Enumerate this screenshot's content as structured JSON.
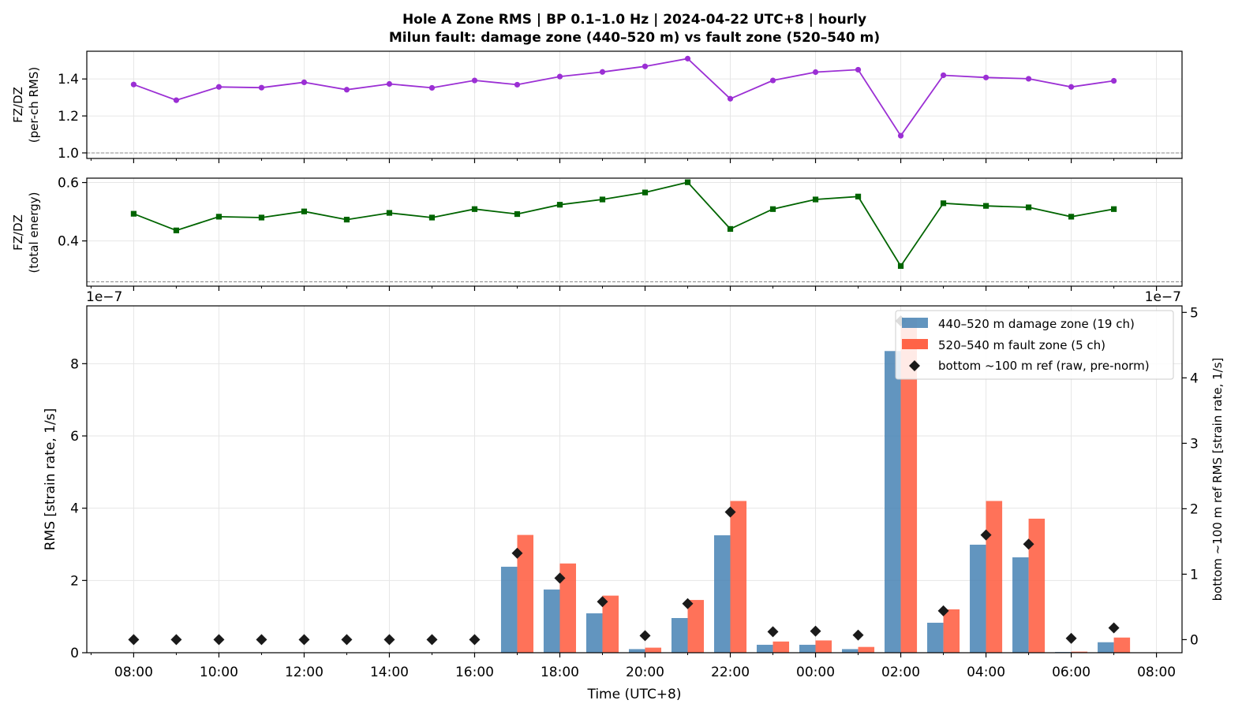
{
  "title": "Hole A Zone RMS  |  BP 0.1–1.0 Hz  |  2024-04-22 UTC+8  |  hourly",
  "subtitle": "Milun fault: damage zone (440–520 m) vs fault zone (520–540 m)",
  "colors": {
    "ratio_rms": "#9b2fd4",
    "ratio_energy": "#006400",
    "damage_zone": "#4682b4",
    "fault_zone": "#ff6347",
    "reference": "#1a1a1a",
    "grid": "#e6e6e6"
  },
  "chart_data": [
    {
      "type": "line",
      "ylabel": "FZ/DZ",
      "ylabel_sub": "(per-ch RMS)",
      "ylim": [
        0.97,
        1.55
      ],
      "yticks": [
        1.0,
        1.2,
        1.4
      ],
      "ytick_labels": [
        "1.0",
        "1.2",
        "1.4"
      ],
      "reference_line": 1.0,
      "marker": "circle",
      "x": [
        8,
        9,
        10,
        11,
        12,
        13,
        14,
        15,
        16,
        17,
        18,
        19,
        20,
        21,
        22,
        23,
        24,
        25,
        26,
        27,
        28,
        29,
        30,
        31
      ],
      "values": [
        1.37,
        1.285,
        1.357,
        1.353,
        1.382,
        1.342,
        1.373,
        1.352,
        1.392,
        1.369,
        1.413,
        1.438,
        1.468,
        1.51,
        1.293,
        1.392,
        1.437,
        1.45,
        1.093,
        1.42,
        1.408,
        1.401,
        1.357,
        1.39
      ],
      "grid": true
    },
    {
      "type": "line",
      "ylabel": "FZ/DZ",
      "ylabel_sub": "(total energy)",
      "ylim": [
        0.245,
        0.615
      ],
      "yticks": [
        0.4,
        0.6
      ],
      "ytick_labels": [
        "0.4",
        "0.6"
      ],
      "reference_line": 0.26,
      "marker": "square",
      "x": [
        8,
        9,
        10,
        11,
        12,
        13,
        14,
        15,
        16,
        17,
        18,
        19,
        20,
        21,
        22,
        23,
        24,
        25,
        26,
        27,
        28,
        29,
        30,
        31
      ],
      "values": [
        0.493,
        0.436,
        0.483,
        0.48,
        0.501,
        0.473,
        0.496,
        0.48,
        0.509,
        0.492,
        0.524,
        0.542,
        0.566,
        0.601,
        0.441,
        0.509,
        0.542,
        0.552,
        0.314,
        0.529,
        0.52,
        0.515,
        0.483,
        0.509
      ],
      "grid": true
    },
    {
      "type": "bar",
      "xlabel": "Time (UTC+8)",
      "ylabel": "RMS  [strain rate, 1/s]",
      "ylabel_right": "bottom ~100 m ref RMS  [strain rate, 1/s]",
      "offset_left": "1e−7",
      "offset_right": "1e−7",
      "ylim": [
        0,
        9.6
      ],
      "yticks": [
        0,
        2,
        4,
        6,
        8
      ],
      "ytick_labels": [
        "0",
        "2",
        "4",
        "6",
        "8"
      ],
      "ylim_right": [
        -0.2,
        5.1
      ],
      "yticks_right": [
        0,
        1,
        2,
        3,
        4,
        5
      ],
      "ytick_labels_right": [
        "0",
        "1",
        "2",
        "3",
        "4",
        "5"
      ],
      "xlim": [
        6.9,
        32.6
      ],
      "xticks_major": [
        8,
        10,
        12,
        14,
        16,
        18,
        20,
        22,
        24,
        26,
        28,
        30,
        32
      ],
      "xtick_labels": [
        "08:00",
        "10:00",
        "12:00",
        "14:00",
        "16:00",
        "18:00",
        "20:00",
        "22:00",
        "00:00",
        "02:00",
        "04:00",
        "06:00",
        "08:00"
      ],
      "xticks_minor": [
        7,
        9,
        11,
        13,
        15,
        17,
        19,
        21,
        23,
        25,
        27,
        29,
        31
      ],
      "x": [
        8,
        9,
        10,
        11,
        12,
        13,
        14,
        15,
        16,
        17,
        18,
        19,
        20,
        21,
        22,
        23,
        24,
        25,
        26,
        27,
        28,
        29,
        30,
        31
      ],
      "series": [
        {
          "name": "440–520 m  damage zone (19 ch)",
          "axis": "left",
          "kind": "bar",
          "values": [
            0,
            0,
            0,
            0,
            0,
            0,
            0,
            0,
            0,
            2.38,
            1.75,
            1.09,
            0.1,
            0.96,
            3.25,
            0.22,
            0.22,
            0.1,
            8.35,
            0.83,
            2.99,
            2.64,
            0.02,
            0.29
          ]
        },
        {
          "name": "520–540 m  fault zone (5 ch)",
          "axis": "left",
          "kind": "bar",
          "values": [
            0,
            0,
            0,
            0,
            0,
            0,
            0,
            0,
            0,
            3.26,
            2.47,
            1.58,
            0.14,
            1.46,
            4.2,
            0.31,
            0.34,
            0.16,
            9.25,
            1.2,
            4.2,
            3.71,
            0.03,
            0.42
          ]
        },
        {
          "name": "bottom ~100 m ref (raw, pre-norm)",
          "axis": "right",
          "kind": "marker",
          "values": [
            0.0,
            0.0,
            0.0,
            0.0,
            0.0,
            0.0,
            0.0,
            0.0,
            0.0,
            1.32,
            0.94,
            0.58,
            0.06,
            0.55,
            1.95,
            0.12,
            0.13,
            0.07,
            4.87,
            0.44,
            1.6,
            1.46,
            0.02,
            0.18
          ]
        }
      ],
      "legend_position": "upper right",
      "grid": true
    }
  ]
}
